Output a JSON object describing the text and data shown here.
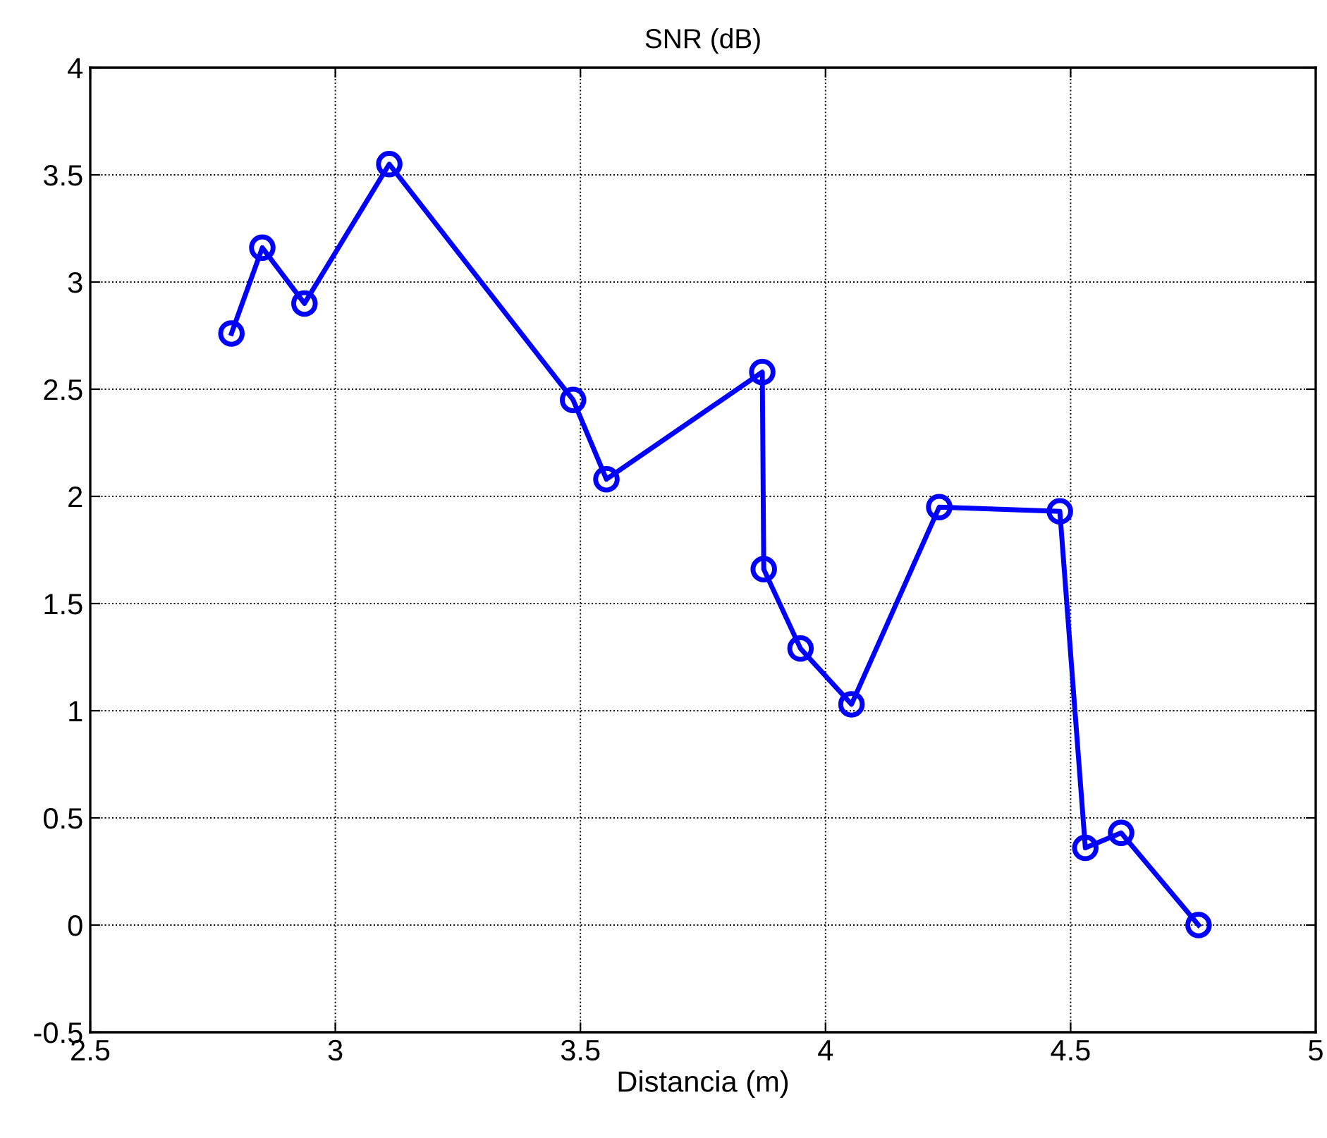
{
  "chart_data": {
    "type": "line",
    "title": "SNR (dB)",
    "xlabel": "Distancia (m)",
    "x": [
      2.788,
      2.851,
      2.937,
      3.11,
      3.485,
      3.553,
      3.871,
      3.874,
      3.949,
      4.053,
      4.232,
      4.478,
      4.53,
      4.603,
      4.761
    ],
    "series": [
      {
        "color": "#0000ff",
        "values": [
          2.76,
          3.16,
          2.9,
          3.55,
          2.45,
          2.08,
          2.58,
          1.66,
          1.29,
          1.03,
          1.95,
          1.93,
          0.36,
          0.43,
          0.0
        ]
      }
    ],
    "xlim": [
      2.5,
      5
    ],
    "ylim": [
      -0.5,
      4
    ],
    "xticks": [
      2.5,
      3,
      3.5,
      4,
      4.5,
      5
    ],
    "yticks": [
      {
        "value": -0.5,
        "label": "-0.5"
      },
      0,
      0.5,
      1,
      1.5,
      2,
      2.5,
      3,
      3.5,
      4
    ],
    "grid": true,
    "marker": "circle",
    "line_style": "solid"
  }
}
